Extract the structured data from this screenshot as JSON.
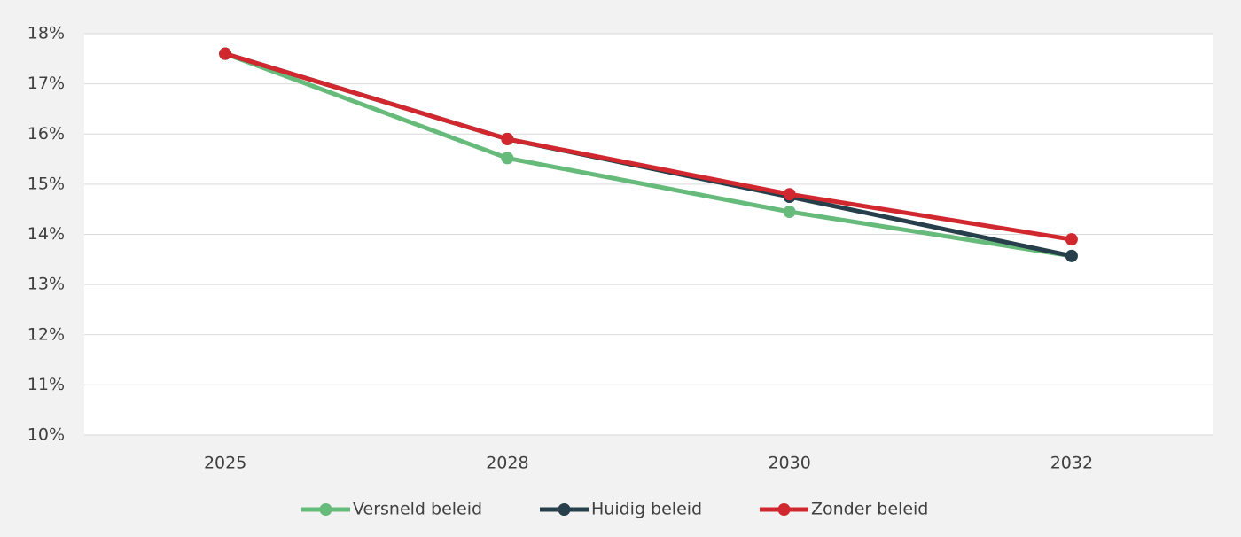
{
  "chart_data": {
    "type": "line",
    "categories": [
      "2025",
      "2028",
      "2030",
      "2032"
    ],
    "series": [
      {
        "name": "Versneld beleid",
        "color": "#66bb7a",
        "values": [
          17.6,
          15.52,
          14.45,
          13.57
        ]
      },
      {
        "name": "Huidig beleid",
        "color": "#263f4a",
        "values": [
          17.6,
          15.9,
          14.75,
          13.57
        ]
      },
      {
        "name": "Zonder beleid",
        "color": "#d0282e",
        "values": [
          17.6,
          15.9,
          14.8,
          13.9
        ]
      }
    ],
    "ylim": [
      10,
      18
    ],
    "yticks": [
      {
        "value": 10,
        "label": "10%"
      },
      {
        "value": 11,
        "label": "11%"
      },
      {
        "value": 12,
        "label": "12%"
      },
      {
        "value": 13,
        "label": "13%"
      },
      {
        "value": 14,
        "label": "14%"
      },
      {
        "value": 15,
        "label": "15%"
      },
      {
        "value": 16,
        "label": "16%"
      },
      {
        "value": 17,
        "label": "17%"
      },
      {
        "value": 18,
        "label": "18%"
      }
    ],
    "grid": true,
    "legend": "bottom"
  }
}
